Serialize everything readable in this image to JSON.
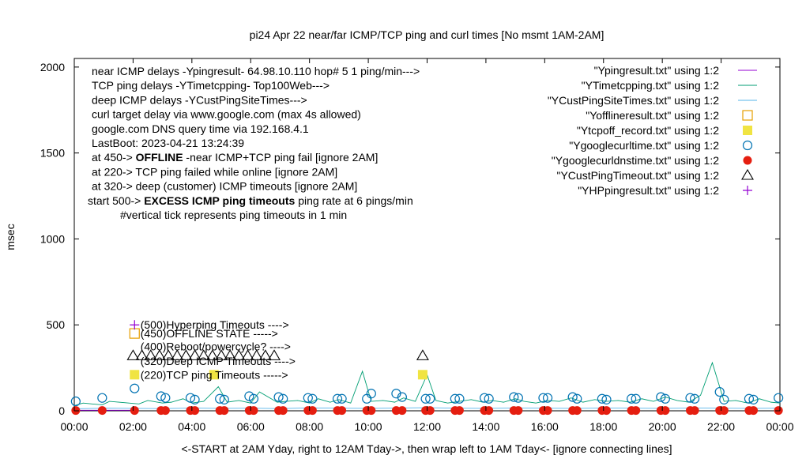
{
  "chart_data": {
    "type": "line",
    "title": "pi24 Apr 22  near/far ICMP/TCP ping and curl times [No msmt 1AM-2AM]",
    "xlabel": "<-START at 2AM Yday, right to 12AM Tday->, then wrap left to 1AM Tday<- [ignore connecting lines]",
    "ylabel": "msec",
    "xlim": [
      0,
      24
    ],
    "ylim": [
      0,
      2050
    ],
    "x_ticks": [
      "00:00",
      "02:00",
      "04:00",
      "06:00",
      "08:00",
      "10:00",
      "12:00",
      "14:00",
      "16:00",
      "18:00",
      "20:00",
      "22:00",
      "00:00"
    ],
    "y_ticks": [
      0,
      500,
      1000,
      1500,
      2000
    ],
    "grid": false,
    "legend_position": "top-right",
    "info_lines": [
      {
        "text": "near ICMP delays -Ypingresult- 64.98.10.110 hop# 5 1 ping/min--->"
      },
      {
        "text": "TCP ping delays -YTimetcpping- Top100Web--->"
      },
      {
        "text": "deep ICMP delays -YCustPingSiteTimes--->"
      },
      {
        "text": "curl target delay via www.google.com (max 4s allowed)"
      },
      {
        "text": "google.com DNS query time via 192.168.4.1"
      },
      {
        "text": "LastBoot: 2023-04-21 13:24:39"
      },
      {
        "pre": "at 450-> ",
        "bold": "OFFLINE",
        "post": " -near ICMP+TCP ping fail [ignore 2AM]"
      },
      {
        "text": "at 220-> TCP ping failed while online [ignore 2AM]"
      },
      {
        "text": "at 320-> deep (customer) ICMP timeouts [ignore 2AM]"
      },
      {
        "pre": "start 500-> ",
        "bold": "EXCESS ICMP ping timeouts",
        "post": "  ping rate at 6 pings/min"
      },
      {
        "text": "#vertical tick represents ping timeouts in 1 min"
      }
    ],
    "annotations": [
      {
        "text": "(500)Hyperping Timeouts ---->",
        "x": 2.25,
        "y": 500
      },
      {
        "text": "(450)OFFLINE STATE ----->",
        "x": 2.25,
        "y": 450
      },
      {
        "text": "(400)Reboot/powercycle? ---->",
        "x": 2.25,
        "y": 375
      },
      {
        "text": "(320)Deep ICMP Timeouts ---->",
        "x": 2.25,
        "y": 290
      },
      {
        "text": "(220)TCP ping Timeouts ----->",
        "x": 2.25,
        "y": 210
      }
    ],
    "series": [
      {
        "name": "\"Ypingresult.txt\" using 1:2",
        "style": "line",
        "color": "#9400d3",
        "x": [
          0,
          2.0
        ],
        "y": [
          3,
          3
        ]
      },
      {
        "name": "\"YTimetcpping.txt\" using 1:2",
        "style": "line",
        "color": "#009e73",
        "x": [
          0,
          0.3,
          0.6,
          0.95,
          1.2,
          2.2,
          2.5,
          3.0,
          3.3,
          3.7,
          4.0,
          4.4,
          4.9,
          5.2,
          5.6,
          6.0,
          6.3,
          6.9,
          7.2,
          7.6,
          8.0,
          8.3,
          8.7,
          9.0,
          9.4,
          9.8,
          10.1,
          10.5,
          10.9,
          11.2,
          11.6,
          12.0,
          12.3,
          12.7,
          13.1,
          13.5,
          13.9,
          14.2,
          14.6,
          15.0,
          15.3,
          15.7,
          16.1,
          16.5,
          16.9,
          17.3,
          17.7,
          18.1,
          18.5,
          18.9,
          19.3,
          19.7,
          20.1,
          20.5,
          20.9,
          21.3,
          21.7,
          22.1,
          22.5,
          22.9,
          23.3,
          23.7,
          24.0
        ],
        "y": [
          30,
          45,
          40,
          35,
          55,
          40,
          60,
          45,
          50,
          70,
          45,
          55,
          140,
          50,
          60,
          45,
          110,
          50,
          55,
          60,
          45,
          70,
          50,
          65,
          45,
          230,
          55,
          60,
          50,
          75,
          55,
          210,
          60,
          45,
          55,
          65,
          50,
          60,
          50,
          70,
          55,
          45,
          60,
          55,
          75,
          50,
          65,
          55,
          60,
          50,
          70,
          55,
          80,
          60,
          50,
          90,
          280,
          55,
          60,
          45,
          70,
          50,
          45
        ]
      },
      {
        "name": "\"YCustPingSiteTimes.txt\" using 1:2",
        "style": "line",
        "color": "#56b4e9",
        "x": [
          0,
          1.0,
          2.0,
          3.0,
          4.0,
          5.0,
          6.0,
          7.0,
          8.0,
          9.0,
          10.0,
          11.0,
          12.0,
          13.0,
          14.0,
          15.0,
          16.0,
          17.0,
          18.0,
          19.0,
          20.0,
          21.0,
          22.0,
          23.0,
          24.0
        ],
        "y": [
          12,
          15,
          14,
          13,
          16,
          14,
          15,
          13,
          17,
          15,
          14,
          16,
          18,
          15,
          14,
          16,
          15,
          14,
          16,
          15,
          14,
          16,
          15,
          14,
          15
        ]
      },
      {
        "name": "\"Yofflineresult.txt\" using 1:2",
        "style": "open-square",
        "color": "#e69f00",
        "x": [
          2.05
        ],
        "y": [
          450
        ]
      },
      {
        "name": "\"Ytcpoff_record.txt\" using 1:2",
        "style": "filled-square",
        "color": "#f0e442",
        "x": [
          2.05,
          4.75,
          11.85
        ],
        "y": [
          210,
          210,
          210
        ]
      },
      {
        "name": "\"Ygooglecurltime.txt\" using 1:2",
        "style": "open-circle",
        "color": "#0072b2",
        "x": [
          0.05,
          0.95,
          2.05,
          2.95,
          3.1,
          3.95,
          4.1,
          4.95,
          5.1,
          5.95,
          6.1,
          6.95,
          7.1,
          7.95,
          8.1,
          8.95,
          9.1,
          9.95,
          10.1,
          10.95,
          11.15,
          11.95,
          12.1,
          12.95,
          13.1,
          13.95,
          14.1,
          14.95,
          15.1,
          15.95,
          16.1,
          16.95,
          17.1,
          17.95,
          18.1,
          18.95,
          19.1,
          19.95,
          20.1,
          20.95,
          21.1,
          21.95,
          22.1,
          22.95,
          23.1,
          23.95
        ],
        "y": [
          55,
          75,
          130,
          85,
          75,
          75,
          65,
          70,
          65,
          85,
          70,
          80,
          70,
          75,
          70,
          70,
          70,
          70,
          100,
          100,
          80,
          70,
          70,
          70,
          70,
          75,
          70,
          80,
          75,
          75,
          75,
          80,
          70,
          70,
          65,
          70,
          70,
          80,
          70,
          75,
          70,
          110,
          65,
          70,
          65,
          75
        ]
      },
      {
        "name": "\"Ygooglecurldnstime.txt\" using 1:2",
        "style": "filled-circle",
        "color": "#e51e10",
        "x": [
          0.05,
          0.95,
          2.05,
          2.95,
          3.1,
          3.95,
          4.1,
          4.95,
          5.1,
          5.95,
          6.1,
          6.95,
          7.1,
          7.95,
          8.1,
          8.95,
          9.1,
          9.95,
          10.1,
          10.95,
          11.15,
          11.95,
          12.1,
          12.95,
          13.1,
          13.95,
          14.1,
          14.95,
          15.1,
          15.95,
          16.1,
          16.95,
          17.1,
          17.95,
          18.1,
          18.95,
          19.1,
          19.95,
          20.1,
          20.95,
          21.1,
          21.95,
          22.1,
          22.95,
          23.1,
          23.95
        ],
        "y": [
          2,
          2,
          2,
          2,
          2,
          2,
          2,
          2,
          2,
          2,
          2,
          2,
          2,
          2,
          2,
          2,
          2,
          2,
          2,
          2,
          2,
          2,
          2,
          2,
          2,
          2,
          2,
          2,
          2,
          2,
          2,
          2,
          2,
          2,
          2,
          2,
          2,
          2,
          2,
          2,
          2,
          2,
          2,
          2,
          2,
          2
        ]
      },
      {
        "name": "\"YCustPingTimeout.txt\" using 1:2",
        "style": "open-triangle",
        "color": "#000000",
        "x": [
          2.0,
          2.3,
          2.6,
          2.9,
          3.2,
          3.5,
          3.8,
          4.1,
          4.4,
          4.7,
          5.0,
          5.3,
          5.6,
          5.9,
          6.2,
          6.5,
          6.8,
          11.85
        ],
        "y": [
          320,
          320,
          320,
          320,
          320,
          320,
          320,
          320,
          320,
          320,
          320,
          320,
          320,
          320,
          320,
          320,
          320,
          320
        ]
      },
      {
        "name": "\"YHPpingresult.txt\" using 1:2",
        "style": "plus",
        "color": "#9400d3",
        "x": [
          2.05
        ],
        "y": [
          500
        ]
      }
    ]
  }
}
